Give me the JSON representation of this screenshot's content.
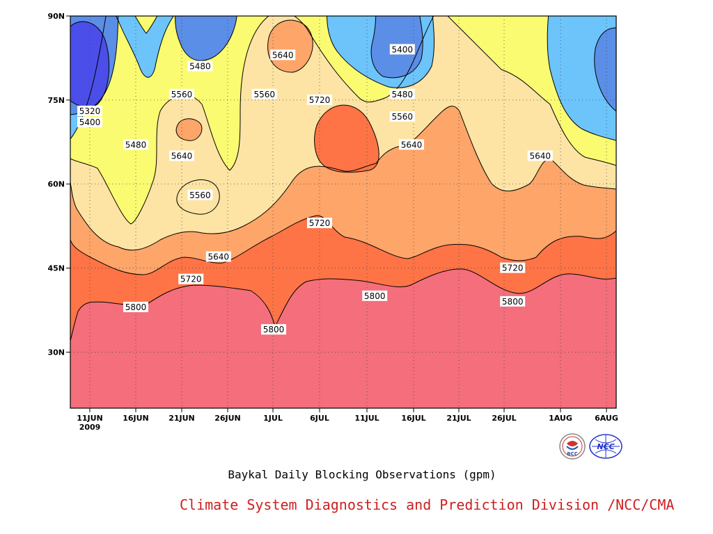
{
  "chart_data": {
    "type": "heatmap",
    "subtype": "filled-contour",
    "title": "Baykal Daily Blocking Observations (gpm)",
    "x_tick_labels": [
      "11JUN",
      "16JUN",
      "21JUN",
      "26JUN",
      "1JUL",
      "6JUL",
      "11JUL",
      "16JUL",
      "21JUL",
      "26JUL",
      "1AUG",
      "6AUG"
    ],
    "x_tick_sublabel": "2009",
    "y_tick_labels": [
      "30N",
      "45N",
      "60N",
      "75N",
      "90N"
    ],
    "y_range": [
      20,
      90
    ],
    "contour_levels": [
      5320,
      5400,
      5480,
      5560,
      5640,
      5720,
      5800
    ],
    "level_colors": {
      "lt5320": "#4b4ee8",
      "5320-5400": "#5b8ee6",
      "5400-5480": "#6cc4fb",
      "5480-5560": "#fbfb72",
      "5560-5640": "#fde4a4",
      "5640-5720": "#fea56a",
      "5720-5800": "#fe7446",
      "gt5800": "#f46e7c"
    },
    "contour_labels": [
      {
        "text": "5320",
        "x_date": "11JUN",
        "lat": 73
      },
      {
        "text": "5400",
        "x_date": "11JUN",
        "lat": 71
      },
      {
        "text": "5480",
        "x_date": "16JUN",
        "lat": 67
      },
      {
        "text": "5480",
        "x_date": "23JUN",
        "lat": 81
      },
      {
        "text": "5560",
        "x_date": "21JUN",
        "lat": 76
      },
      {
        "text": "5640",
        "x_date": "21JUN",
        "lat": 65
      },
      {
        "text": "5560",
        "x_date": "23JUN",
        "lat": 58
      },
      {
        "text": "5640",
        "x_date": "25JUN",
        "lat": 47
      },
      {
        "text": "5720",
        "x_date": "22JUN",
        "lat": 43
      },
      {
        "text": "5800",
        "x_date": "16JUN",
        "lat": 38
      },
      {
        "text": "5560",
        "x_date": "30JUN",
        "lat": 76
      },
      {
        "text": "5640",
        "x_date": "2JUL",
        "lat": 83
      },
      {
        "text": "5720",
        "x_date": "6JUL",
        "lat": 75
      },
      {
        "text": "5720",
        "x_date": "6JUL",
        "lat": 53
      },
      {
        "text": "5800",
        "x_date": "1JUL",
        "lat": 34
      },
      {
        "text": "5400",
        "x_date": "15JUL",
        "lat": 84
      },
      {
        "text": "5480",
        "x_date": "15JUL",
        "lat": 76
      },
      {
        "text": "5560",
        "x_date": "15JUL",
        "lat": 72
      },
      {
        "text": "5640",
        "x_date": "16JUL",
        "lat": 67
      },
      {
        "text": "5800",
        "x_date": "12JUL",
        "lat": 40
      },
      {
        "text": "5720",
        "x_date": "27JUL",
        "lat": 45
      },
      {
        "text": "5800",
        "x_date": "27JUL",
        "lat": 39
      },
      {
        "text": "5640",
        "x_date": "30JUL",
        "lat": 65
      }
    ],
    "grid": "dotted"
  },
  "caption": "Baykal Daily Blocking Observations (gpm)",
  "credit": "Climate System Diagnostics and Prediction Division /NCC/CMA",
  "logos": [
    {
      "name": "bcc-logo",
      "text": "BCC"
    },
    {
      "name": "ncc-logo",
      "text": "NCC"
    }
  ]
}
